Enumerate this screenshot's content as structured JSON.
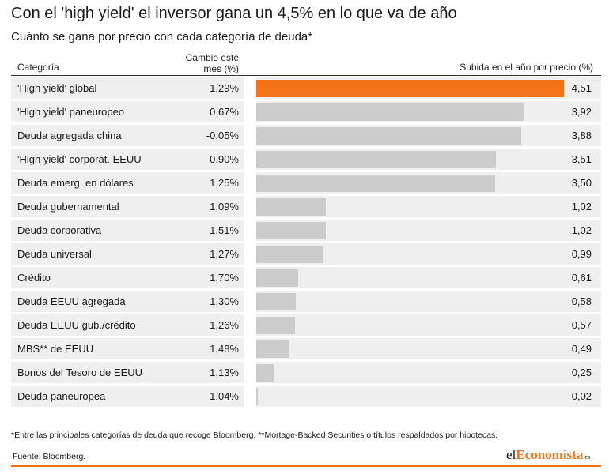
{
  "header": {
    "title": "Con el 'high yield' el inversor gana un 4,5% en lo que va de año",
    "subtitle": "Cuánto se gana por precio con cada categoría de deuda*"
  },
  "columns": {
    "category": "Categoría",
    "change_line1": "Cambio este",
    "change_line2": "mes (%)",
    "bar": "Subida en el año por precio (%)"
  },
  "colors": {
    "highlight": "#f47319",
    "bar": "#cccccc",
    "row_bg": "#efefef"
  },
  "chart_data": {
    "type": "bar",
    "orientation": "horizontal",
    "title": "Con el 'high yield' el inversor gana un 4,5% en lo que va de año",
    "subtitle": "Cuánto se gana por precio con cada categoría de deuda*",
    "xlim": [
      0,
      4.51
    ],
    "categories": [
      "'High yield' global",
      "'High yield' paneuropeo",
      "Deuda agregada china",
      "'High yield' corporat. EEUU",
      "Deuda emerg. en dólares",
      "Deuda gubernamental",
      "Deuda corporativa",
      "Deuda universal",
      "Crédito",
      "Deuda EEUU agregada",
      "Deuda EEUU gub./crédito",
      "MBS** de EEUU",
      "Bonos del Tesoro de EEUU",
      "Deuda paneuropea"
    ],
    "values": [
      4.51,
      3.92,
      3.88,
      3.51,
      3.5,
      1.02,
      1.02,
      0.99,
      0.61,
      0.58,
      0.57,
      0.49,
      0.25,
      0.02
    ],
    "value_labels": [
      "4,51",
      "3,92",
      "3,88",
      "3,51",
      "3,50",
      "1,02",
      "1,02",
      "0,99",
      "0,61",
      "0,58",
      "0,57",
      "0,49",
      "0,25",
      "0,02"
    ],
    "monthly_change": [
      "1,29%",
      "0,67%",
      "-0,05%",
      "0,90%",
      "1,25%",
      "1,09%",
      "1,51%",
      "1,27%",
      "1,70%",
      "1,30%",
      "1,26%",
      "1,48%",
      "1,13%",
      "1,04%"
    ],
    "highlight_index": 0
  },
  "footer": {
    "footnote": "*Entre las principales categorías de deuda que recoge Bloomberg. **Mortage-Backed Securities o títulos respaldados por hipotecas.",
    "source": "Fuente: Bloomberg.",
    "logo_prefix": "el",
    "logo_brand": "Economista",
    "logo_tld": ".es"
  }
}
